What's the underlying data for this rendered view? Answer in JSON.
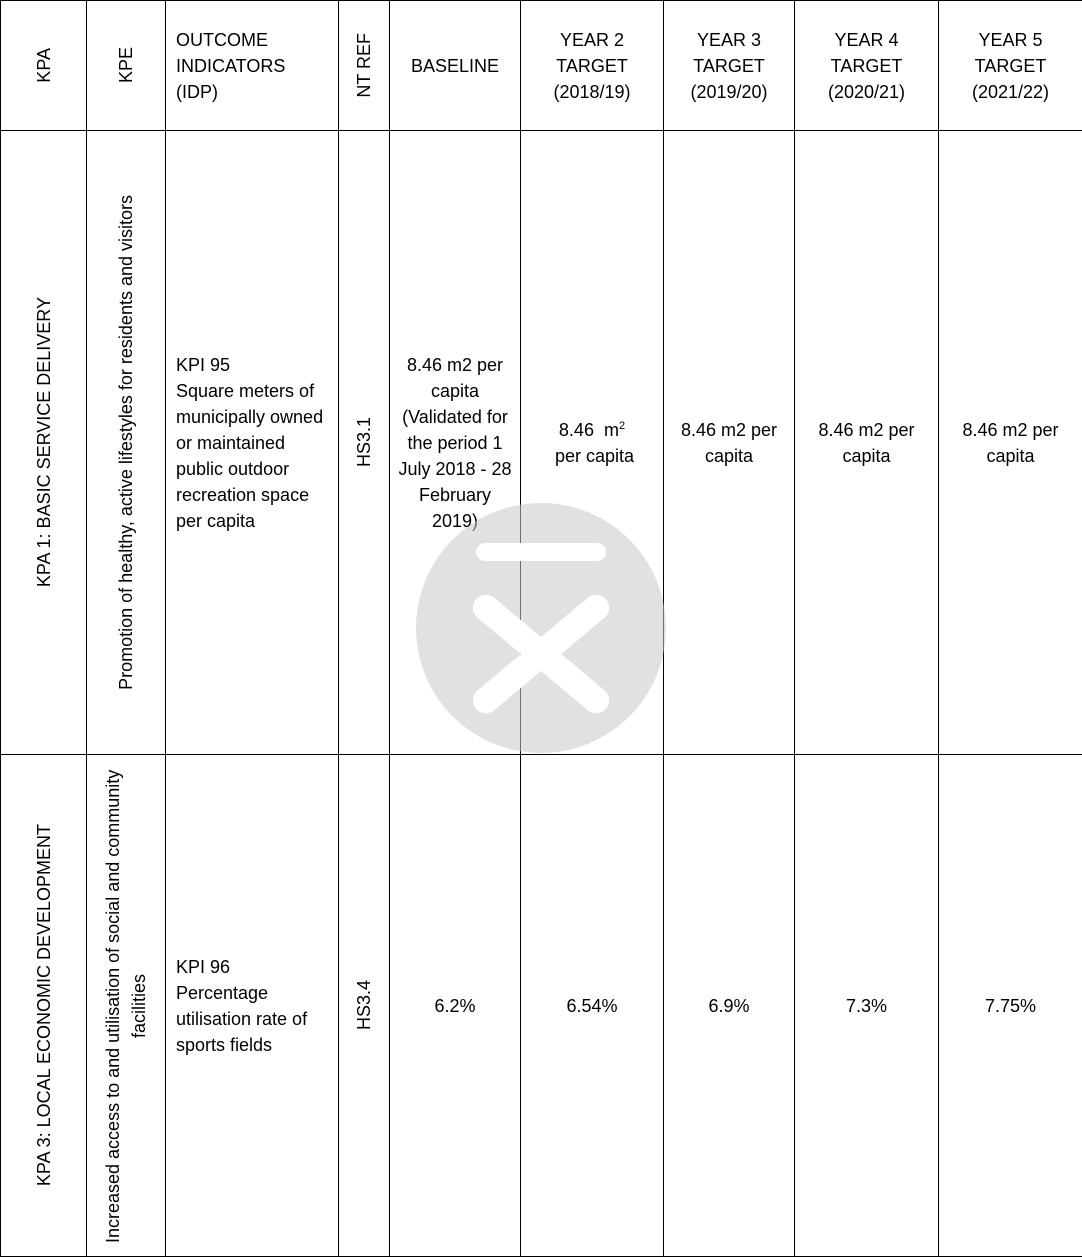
{
  "headers": {
    "kpa": "KPA",
    "kpe": "KPE",
    "outcome_line1": "OUTCOME",
    "outcome_line2": "INDICATORS",
    "outcome_line3": "(IDP)",
    "ntref": "NT REF",
    "baseline": "BASELINE",
    "year2_line1": "YEAR 2",
    "year2_line2": "TARGET",
    "year2_line3": "(2018/19)",
    "year3_line1": "YEAR 3",
    "year3_line2": "TARGET",
    "year3_line3": "(2019/20)",
    "year4_line1": "YEAR 4",
    "year4_line2": "TARGET",
    "year4_line3": "(2020/21)",
    "year5_line1": "YEAR 5",
    "year5_line2": "TARGET",
    "year5_line3": "(2021/22)"
  },
  "rows": [
    {
      "kpa": "KPA 1: BASIC SERVICE DELIVERY",
      "kpe": "Promotion of healthy, active lifestyles for residents and visitors",
      "kpi_id": "KPI 95",
      "kpi_desc": "Square meters of municipally owned or maintained public outdoor recreation space per capita",
      "ntref": "HS3.1",
      "baseline": "8.46 m2 per capita (Validated for the period 1 July 2018 - 28 February 2019)",
      "year2_pre": "8.46  m",
      "year2_sup": "2",
      "year2_post": " per capita",
      "year3": "8.46 m2 per capita",
      "year4": "8.46 m2 per capita",
      "year5": "8.46 m2 per capita"
    },
    {
      "kpa": "KPA 3: LOCAL ECONOMIC DEVELOPMENT",
      "kpe": "Increased access to and utilisation of social and community facilities",
      "kpi_id": "KPI 96",
      "kpi_desc": "Percentage utilisation rate of sports fields",
      "ntref": "HS3.4",
      "baseline": "6.2%",
      "year2": "6.54%",
      "year3": "6.9%",
      "year4": "7.3%",
      "year5": "7.75%"
    }
  ]
}
